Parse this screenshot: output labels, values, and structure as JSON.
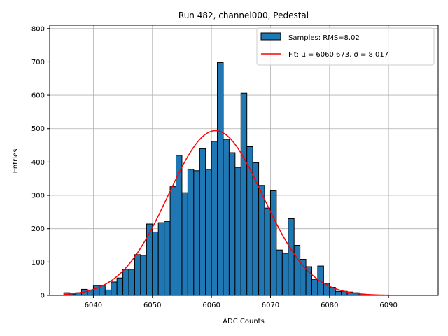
{
  "chart_data": {
    "type": "bar",
    "title": "Run 482, channel000, Pedestal",
    "xlabel": "ADC Counts",
    "ylabel": "Entries",
    "xlim": [
      6032.6,
      6098.4
    ],
    "ylim": [
      0,
      810
    ],
    "xticks": [
      6040,
      6050,
      6060,
      6070,
      6080,
      6090
    ],
    "yticks": [
      0,
      100,
      200,
      300,
      400,
      500,
      600,
      700,
      800
    ],
    "grid": true,
    "legend_position": "upper right",
    "bin_width": 1,
    "histogram": {
      "name": "Samples: RMS=8.02",
      "color": "#1f77b4",
      "bins": [
        [
          6035,
          8
        ],
        [
          6036,
          4
        ],
        [
          6037,
          8
        ],
        [
          6038,
          18
        ],
        [
          6039,
          16
        ],
        [
          6040,
          30
        ],
        [
          6041,
          30
        ],
        [
          6042,
          16
        ],
        [
          6043,
          40
        ],
        [
          6044,
          52
        ],
        [
          6045,
          78
        ],
        [
          6046,
          78
        ],
        [
          6047,
          122
        ],
        [
          6048,
          120
        ],
        [
          6049,
          214
        ],
        [
          6050,
          190
        ],
        [
          6051,
          218
        ],
        [
          6052,
          222
        ],
        [
          6053,
          326
        ],
        [
          6054,
          420
        ],
        [
          6055,
          308
        ],
        [
          6056,
          378
        ],
        [
          6057,
          374
        ],
        [
          6058,
          440
        ],
        [
          6059,
          378
        ],
        [
          6060,
          462
        ],
        [
          6061,
          698
        ],
        [
          6062,
          468
        ],
        [
          6063,
          428
        ],
        [
          6064,
          384
        ],
        [
          6065,
          606
        ],
        [
          6066,
          446
        ],
        [
          6067,
          398
        ],
        [
          6068,
          330
        ],
        [
          6069,
          262
        ],
        [
          6070,
          314
        ],
        [
          6071,
          136
        ],
        [
          6072,
          126
        ],
        [
          6073,
          230
        ],
        [
          6074,
          150
        ],
        [
          6075,
          108
        ],
        [
          6076,
          86
        ],
        [
          6077,
          48
        ],
        [
          6078,
          88
        ],
        [
          6079,
          36
        ],
        [
          6080,
          24
        ],
        [
          6081,
          12
        ],
        [
          6082,
          12
        ],
        [
          6083,
          10
        ],
        [
          6084,
          8
        ],
        [
          6085,
          4
        ],
        [
          6086,
          2
        ],
        [
          6087,
          2
        ],
        [
          6088,
          1
        ],
        [
          6089,
          1
        ],
        [
          6090,
          1
        ],
        [
          6091,
          0
        ],
        [
          6092,
          0
        ],
        [
          6093,
          0
        ],
        [
          6094,
          0
        ],
        [
          6095,
          1
        ]
      ]
    },
    "fit": {
      "name": "Fit: μ = 6060.673, σ = 8.017",
      "color": "#ff0000",
      "mu": 6060.673,
      "sigma": 8.017,
      "amplitude": 494,
      "range": [
        6035,
        6090
      ]
    }
  }
}
